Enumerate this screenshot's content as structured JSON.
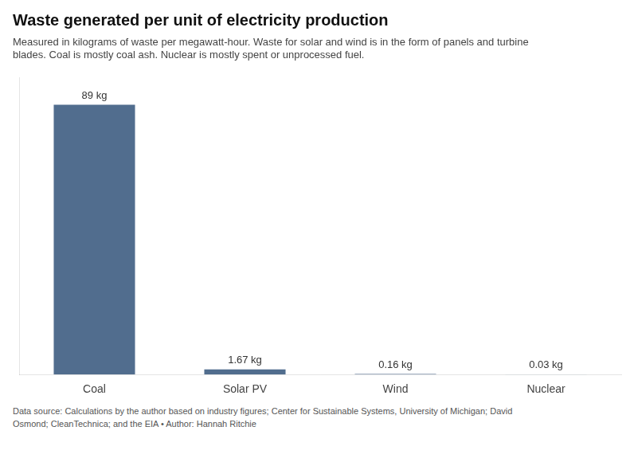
{
  "chart_data": {
    "type": "bar",
    "title": "Waste generated per unit of electricity production",
    "subtitle": "Measured in kilograms of waste per megawatt-hour. Waste for solar and wind is in the form of panels and turbine\nblades. Coal is mostly coal ash. Nuclear is mostly spent or unprocessed fuel.",
    "annotations": [
      "Data source: Calculations by the author based on industry figures; Center for Sustainable Systems, University of Michigan; David\nOsmond; CleanTechnica; and the EIA • Author: Hannah Ritchie"
    ],
    "categories": [
      "Coal",
      "Solar PV",
      "Wind",
      "Nuclear"
    ],
    "values": [
      89,
      1.67,
      0.16,
      0.03
    ],
    "value_labels": [
      "89 kg",
      "1.67 kg",
      "0.16 kg",
      "0.03 kg"
    ],
    "color": "#516d8e",
    "ylim": [
      0,
      98
    ],
    "grid": false,
    "data_labels": true,
    "tick_labels": "x"
  }
}
